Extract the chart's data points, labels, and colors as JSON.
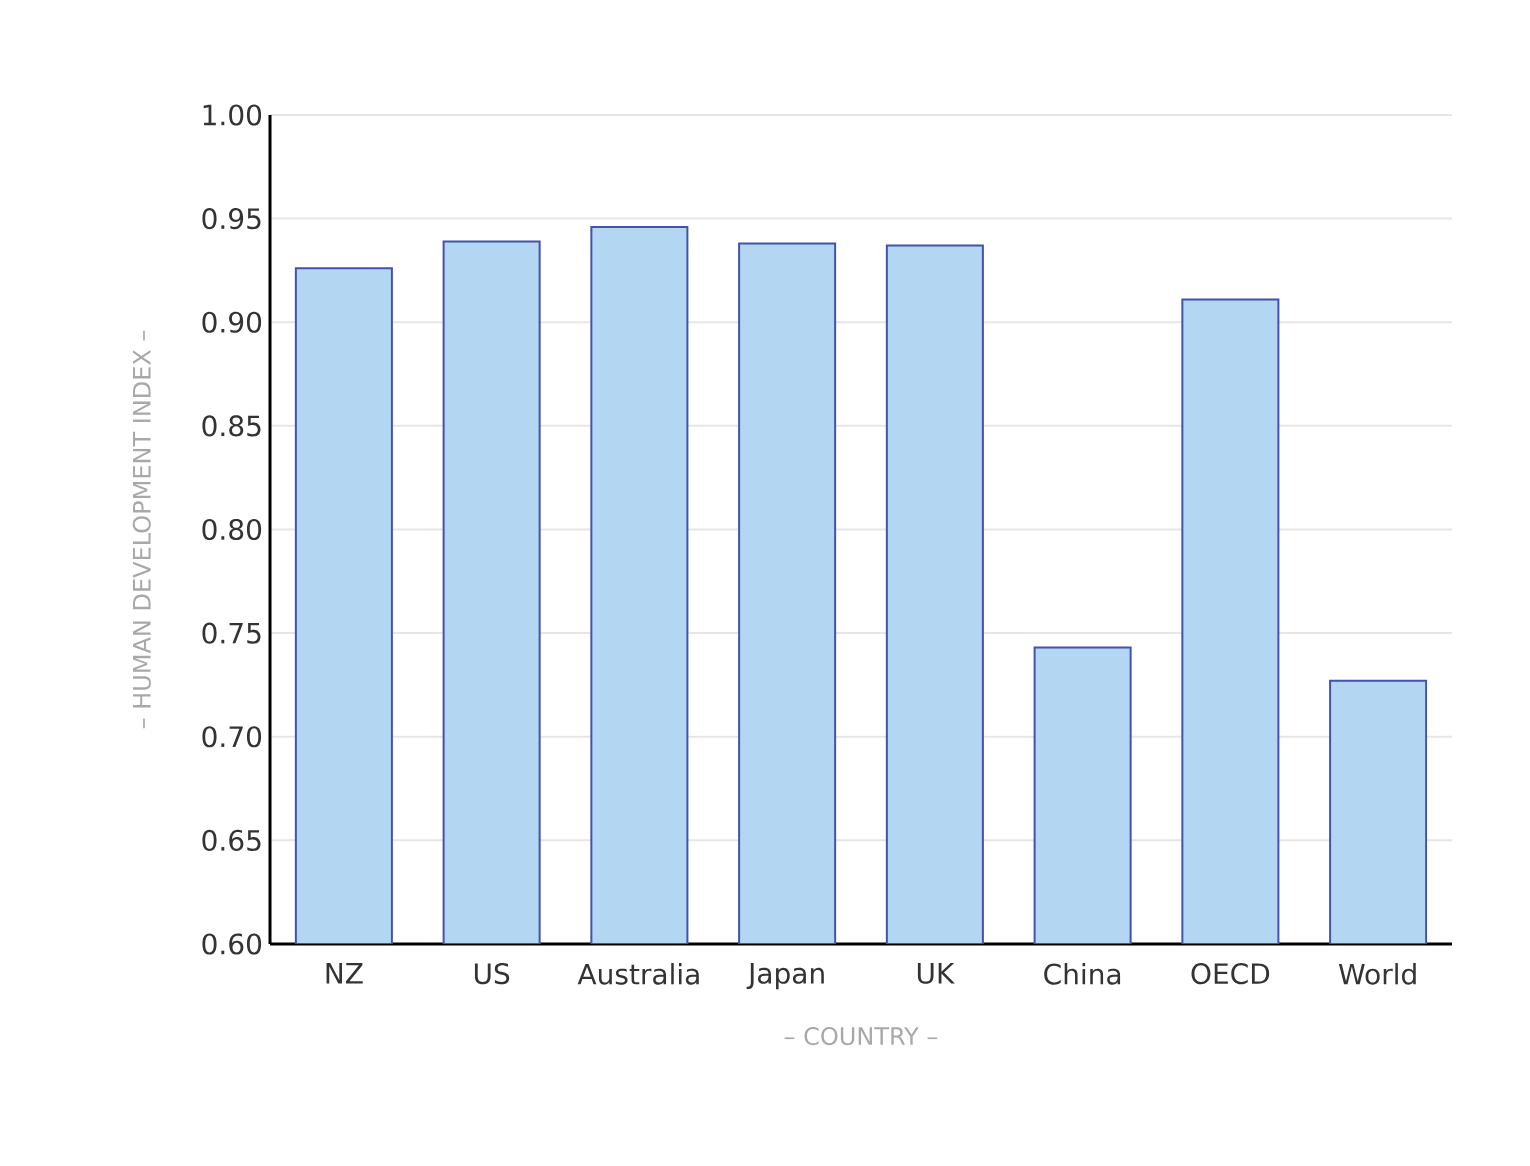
{
  "chart_data": {
    "type": "bar",
    "xlabel": "– COUNTRY –",
    "ylabel": "– HUMAN DEVELOPMENT INDEX –",
    "categories": [
      "NZ",
      "US",
      "Australia",
      "Japan",
      "UK",
      "China",
      "OECD",
      "World"
    ],
    "values": [
      0.926,
      0.939,
      0.946,
      0.938,
      0.937,
      0.743,
      0.911,
      0.727
    ],
    "color": "#b3d6f2",
    "ylim": [
      0.6,
      1.0
    ],
    "yticks": [
      {
        "value": 0.6,
        "label": "0.60"
      },
      {
        "value": 0.65,
        "label": "0.65"
      },
      {
        "value": 0.7,
        "label": "0.70"
      },
      {
        "value": 0.75,
        "label": "0.75"
      },
      {
        "value": 0.8,
        "label": "0.80"
      },
      {
        "value": 0.85,
        "label": "0.85"
      },
      {
        "value": 0.9,
        "label": "0.90"
      },
      {
        "value": 0.95,
        "label": "0.95"
      },
      {
        "value": 1.0,
        "label": "1.00"
      }
    ],
    "grid": "y"
  }
}
